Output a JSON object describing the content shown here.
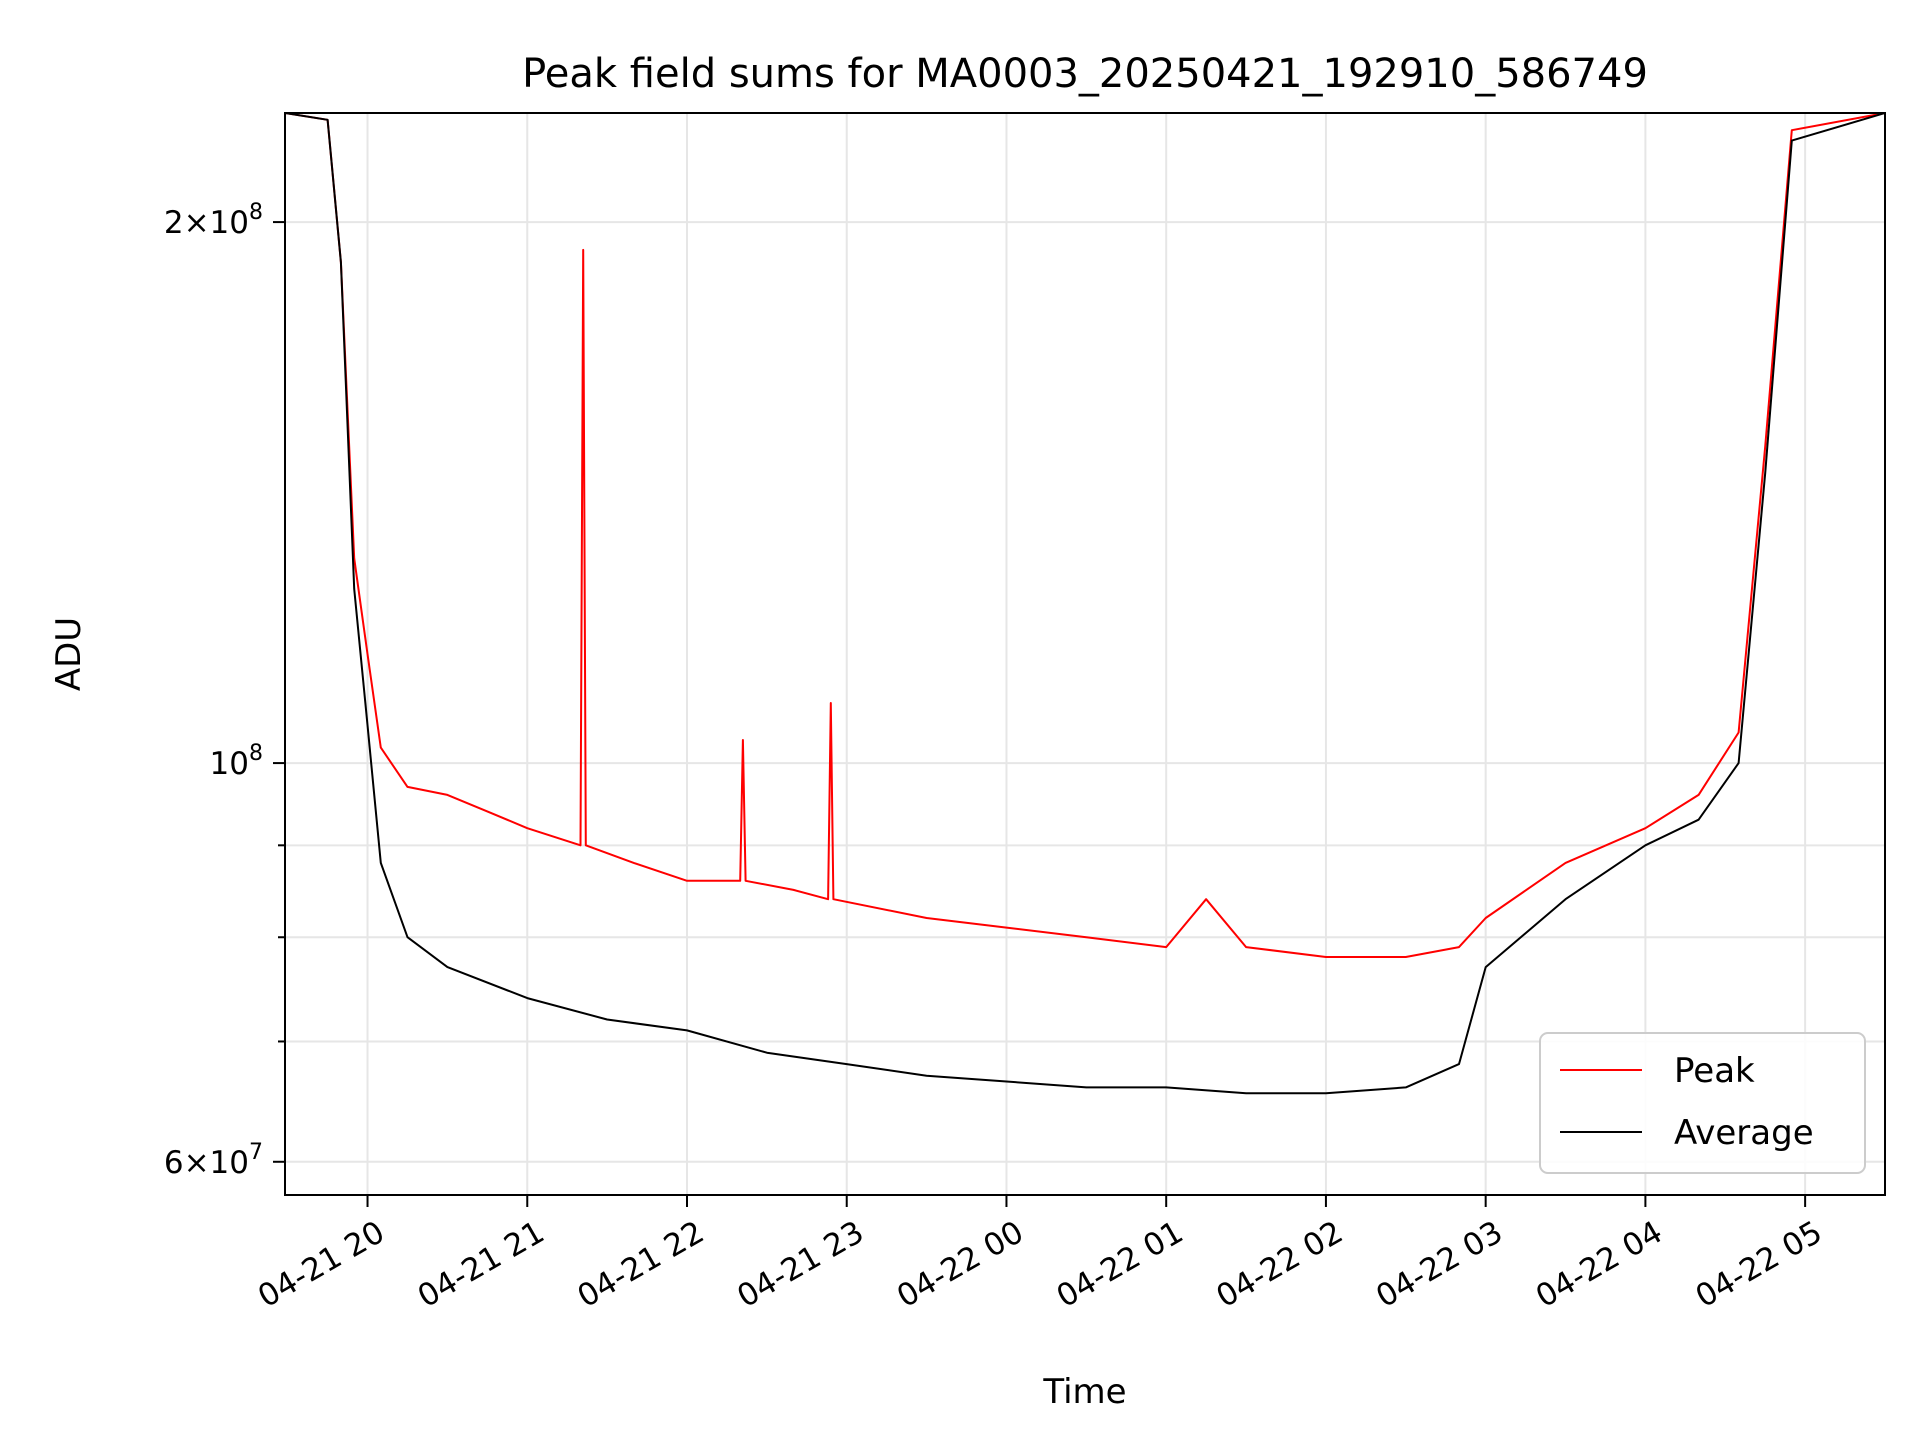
{
  "chart_data": {
    "type": "line",
    "title": "Peak field sums for MA0003_20250421_192910_586749",
    "xlabel": "Time",
    "ylabel": "ADU",
    "x_range": [
      "2025-04-21 19:29",
      "2025-04-22 05:30"
    ],
    "y_scale": "log",
    "ylim": [
      57500000,
      230000000
    ],
    "grid": true,
    "legend_position": "lower-right",
    "x_ticks": [
      {
        "time": "2025-04-21 20:00",
        "label": "04-21 20"
      },
      {
        "time": "2025-04-21 21:00",
        "label": "04-21 21"
      },
      {
        "time": "2025-04-21 22:00",
        "label": "04-21 22"
      },
      {
        "time": "2025-04-21 23:00",
        "label": "04-21 23"
      },
      {
        "time": "2025-04-22 00:00",
        "label": "04-22 00"
      },
      {
        "time": "2025-04-22 01:00",
        "label": "04-22 01"
      },
      {
        "time": "2025-04-22 02:00",
        "label": "04-22 02"
      },
      {
        "time": "2025-04-22 03:00",
        "label": "04-22 03"
      },
      {
        "time": "2025-04-22 04:00",
        "label": "04-22 04"
      },
      {
        "time": "2025-04-22 05:00",
        "label": "04-22 05"
      }
    ],
    "y_major_ticks": [
      {
        "value": 60000000,
        "base": "6",
        "exp": "7"
      },
      {
        "value": 100000000,
        "base": "",
        "exp": "8"
      },
      {
        "value": 200000000,
        "base": "2",
        "exp": "8"
      }
    ],
    "y_minor_ticks": [
      70000000,
      80000000,
      90000000
    ],
    "series": [
      {
        "name": "Peak",
        "color": "#ff0000",
        "points": [
          [
            "2025-04-21 19:29",
            230000000
          ],
          [
            "2025-04-21 19:45",
            228000000
          ],
          [
            "2025-04-21 19:50",
            190000000
          ],
          [
            "2025-04-21 19:55",
            130000000
          ],
          [
            "2025-04-21 20:00",
            115000000
          ],
          [
            "2025-04-21 20:05",
            102000000
          ],
          [
            "2025-04-21 20:15",
            97000000
          ],
          [
            "2025-04-21 20:30",
            96000000
          ],
          [
            "2025-04-21 20:45",
            94000000
          ],
          [
            "2025-04-21 21:00",
            92000000
          ],
          [
            "2025-04-21 21:20",
            90000000
          ],
          [
            "2025-04-21 21:21",
            193000000
          ],
          [
            "2025-04-21 21:22",
            90000000
          ],
          [
            "2025-04-21 21:40",
            88000000
          ],
          [
            "2025-04-21 22:00",
            86000000
          ],
          [
            "2025-04-21 22:20",
            86000000
          ],
          [
            "2025-04-21 22:21",
            103000000
          ],
          [
            "2025-04-21 22:22",
            86000000
          ],
          [
            "2025-04-21 22:40",
            85000000
          ],
          [
            "2025-04-21 22:53",
            84000000
          ],
          [
            "2025-04-21 22:54",
            108000000
          ],
          [
            "2025-04-21 22:55",
            84000000
          ],
          [
            "2025-04-21 23:30",
            82000000
          ],
          [
            "2025-04-22 00:00",
            81000000
          ],
          [
            "2025-04-22 00:30",
            80000000
          ],
          [
            "2025-04-22 01:00",
            79000000
          ],
          [
            "2025-04-22 01:15",
            84000000
          ],
          [
            "2025-04-22 01:30",
            79000000
          ],
          [
            "2025-04-22 02:00",
            78000000
          ],
          [
            "2025-04-22 02:30",
            78000000
          ],
          [
            "2025-04-22 02:50",
            79000000
          ],
          [
            "2025-04-22 03:00",
            82000000
          ],
          [
            "2025-04-22 03:30",
            88000000
          ],
          [
            "2025-04-22 04:00",
            92000000
          ],
          [
            "2025-04-22 04:20",
            96000000
          ],
          [
            "2025-04-22 04:35",
            104000000
          ],
          [
            "2025-04-22 04:45",
            150000000
          ],
          [
            "2025-04-22 04:55",
            225000000
          ],
          [
            "2025-04-22 05:30",
            230000000
          ]
        ]
      },
      {
        "name": "Average",
        "color": "#000000",
        "points": [
          [
            "2025-04-21 19:29",
            230000000
          ],
          [
            "2025-04-21 19:45",
            228000000
          ],
          [
            "2025-04-21 19:50",
            190000000
          ],
          [
            "2025-04-21 19:55",
            125000000
          ],
          [
            "2025-04-21 20:00",
            105000000
          ],
          [
            "2025-04-21 20:05",
            88000000
          ],
          [
            "2025-04-21 20:15",
            80000000
          ],
          [
            "2025-04-21 20:30",
            77000000
          ],
          [
            "2025-04-21 21:00",
            74000000
          ],
          [
            "2025-04-21 21:30",
            72000000
          ],
          [
            "2025-04-21 22:00",
            71000000
          ],
          [
            "2025-04-21 22:30",
            69000000
          ],
          [
            "2025-04-21 23:00",
            68000000
          ],
          [
            "2025-04-21 23:30",
            67000000
          ],
          [
            "2025-04-22 00:00",
            66500000
          ],
          [
            "2025-04-22 00:30",
            66000000
          ],
          [
            "2025-04-22 01:00",
            66000000
          ],
          [
            "2025-04-22 01:30",
            65500000
          ],
          [
            "2025-04-22 02:00",
            65500000
          ],
          [
            "2025-04-22 02:30",
            66000000
          ],
          [
            "2025-04-22 02:50",
            68000000
          ],
          [
            "2025-04-22 03:00",
            77000000
          ],
          [
            "2025-04-22 03:30",
            84000000
          ],
          [
            "2025-04-22 04:00",
            90000000
          ],
          [
            "2025-04-22 04:20",
            93000000
          ],
          [
            "2025-04-22 04:35",
            100000000
          ],
          [
            "2025-04-22 04:45",
            145000000
          ],
          [
            "2025-04-22 04:55",
            222000000
          ],
          [
            "2025-04-22 05:30",
            230000000
          ]
        ]
      }
    ]
  }
}
